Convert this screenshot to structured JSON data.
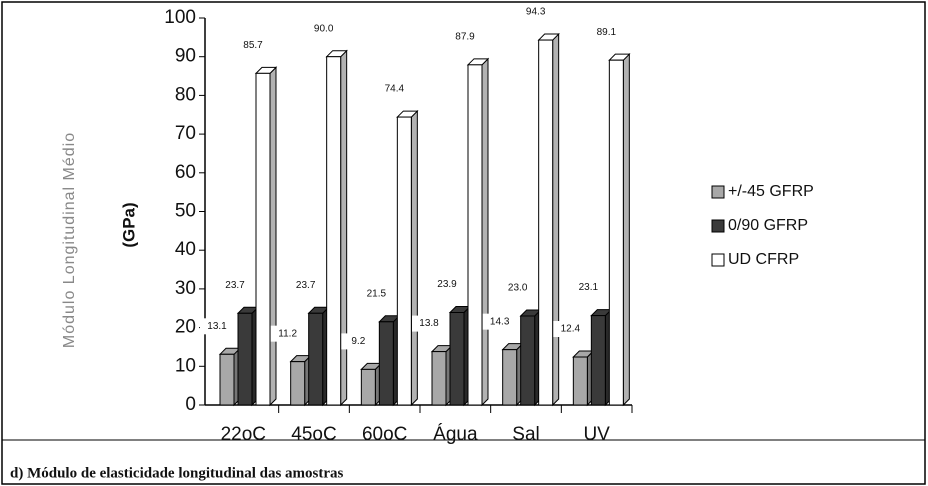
{
  "chart_data": {
    "type": "bar",
    "ylabel": "Módulo Longitudinal Médio",
    "ylabel2": "(GPa)",
    "caption": "d) Módulo de elasticidade longitudinal das amostras",
    "categories": [
      "22oC",
      "45oC",
      "60oC",
      "Água",
      "Sal",
      "UV"
    ],
    "series": [
      {
        "name": "+/-45 GFRP",
        "color": "#a8a8a8",
        "values": [
          13.1,
          11.2,
          9.2,
          13.8,
          14.3,
          12.4
        ],
        "value_labels": [
          "13.1",
          "11.2",
          "9.2",
          "13.8",
          "14.3",
          "12.4"
        ]
      },
      {
        "name": "0/90 GFRP",
        "color": "#3a3a3a",
        "values": [
          23.7,
          23.7,
          21.5,
          23.9,
          23.0,
          23.1
        ],
        "value_labels": [
          "23.7",
          "23.7",
          "21.5",
          "23.9",
          "23.0",
          "23.1"
        ]
      },
      {
        "name": "UD CFRP",
        "color": "#ffffff",
        "values": [
          85.7,
          90.0,
          74.4,
          87.9,
          94.3,
          89.1
        ],
        "value_labels": [
          "85.7",
          "90.0",
          "74.4",
          "87.9",
          "94.3",
          "89.1"
        ]
      }
    ],
    "ylim": [
      0,
      100
    ],
    "yticks": [
      0,
      10,
      20,
      30,
      40,
      50,
      60,
      70,
      80,
      90,
      100
    ],
    "legend": "right"
  }
}
